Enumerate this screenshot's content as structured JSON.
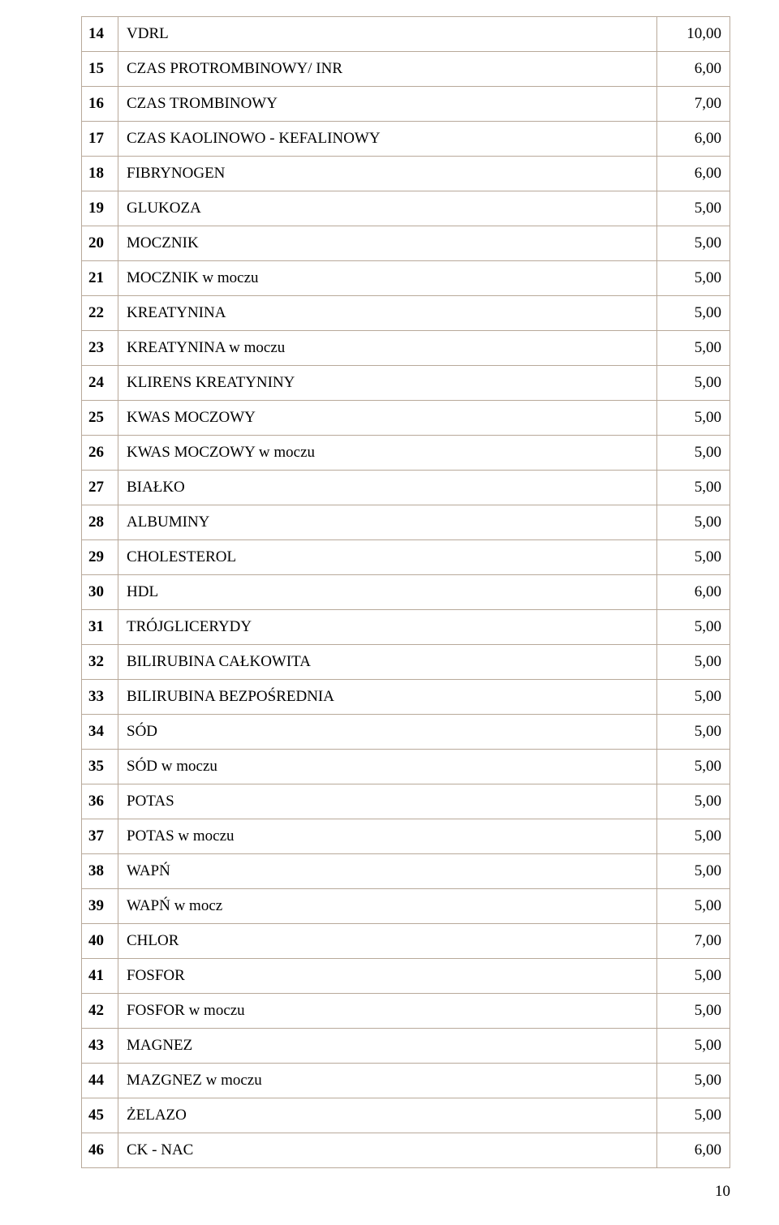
{
  "table": {
    "border_color": "#b8a99a",
    "text_color": "#000000",
    "font_family": "Times New Roman",
    "font_size": 19,
    "rows": [
      {
        "num": "14",
        "name": "VDRL",
        "price": "10,00"
      },
      {
        "num": "15",
        "name": "CZAS  PROTROMBINOWY/ INR",
        "price": "6,00"
      },
      {
        "num": "16",
        "name": "CZAS TROMBINOWY",
        "price": "7,00"
      },
      {
        "num": "17",
        "name": "CZAS  KAOLINOWO - KEFALINOWY",
        "price": "6,00"
      },
      {
        "num": "18",
        "name": "FIBRYNOGEN",
        "price": "6,00"
      },
      {
        "num": "19",
        "name": "GLUKOZA",
        "price": "5,00"
      },
      {
        "num": "20",
        "name": "MOCZNIK",
        "price": "5,00"
      },
      {
        "num": "21",
        "name": "MOCZNIK w  moczu",
        "price": "5,00"
      },
      {
        "num": "22",
        "name": "KREATYNINA",
        "price": "5,00"
      },
      {
        "num": "23",
        "name": "KREATYNINA w moczu",
        "price": "5,00"
      },
      {
        "num": "24",
        "name": "KLIRENS  KREATYNINY",
        "price": "5,00"
      },
      {
        "num": "25",
        "name": "KWAS  MOCZOWY",
        "price": "5,00"
      },
      {
        "num": "26",
        "name": "KWAS  MOCZOWY w moczu",
        "price": "5,00"
      },
      {
        "num": "27",
        "name": "BIAŁKO",
        "price": "5,00"
      },
      {
        "num": "28",
        "name": "ALBUMINY",
        "price": "5,00"
      },
      {
        "num": "29",
        "name": "CHOLESTEROL",
        "price": "5,00"
      },
      {
        "num": "30",
        "name": "HDL",
        "price": "6,00"
      },
      {
        "num": "31",
        "name": "TRÓJGLICERYDY",
        "price": "5,00"
      },
      {
        "num": "32",
        "name": "BILIRUBINA  CAŁKOWITA",
        "price": "5,00"
      },
      {
        "num": "33",
        "name": "BILIRUBINA  BEZPOŚREDNIA",
        "price": "5,00"
      },
      {
        "num": "34",
        "name": "SÓD",
        "price": "5,00"
      },
      {
        "num": "35",
        "name": "SÓD w moczu",
        "price": "5,00"
      },
      {
        "num": "36",
        "name": "POTAS",
        "price": "5,00"
      },
      {
        "num": "37",
        "name": "POTAS w moczu",
        "price": "5,00"
      },
      {
        "num": "38",
        "name": "WAPŃ",
        "price": "5,00"
      },
      {
        "num": "39",
        "name": "WAPŃ w mocz",
        "price": "5,00"
      },
      {
        "num": "40",
        "name": "CHLOR",
        "price": "7,00"
      },
      {
        "num": "41",
        "name": "FOSFOR",
        "price": "5,00"
      },
      {
        "num": "42",
        "name": "FOSFOR w moczu",
        "price": "5,00"
      },
      {
        "num": "43",
        "name": "MAGNEZ",
        "price": "5,00"
      },
      {
        "num": "44",
        "name": "MAZGNEZ w moczu",
        "price": "5,00"
      },
      {
        "num": "45",
        "name": "ŻELAZO",
        "price": "5,00"
      },
      {
        "num": "46",
        "name": "CK - NAC",
        "price": "6,00"
      }
    ]
  },
  "page_number": "10"
}
